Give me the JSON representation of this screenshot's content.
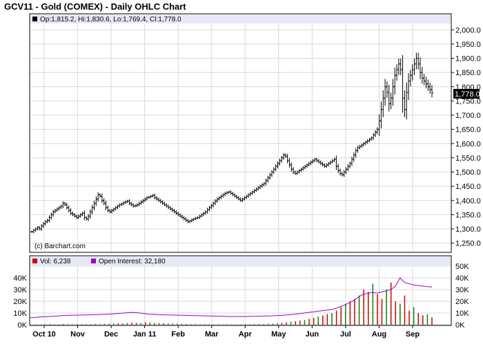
{
  "title": "GCV11 - Gold (COMEX) - Daily OHLC Chart",
  "price_legend": "Op:1,815.2, Hi:1,830.6, Lo:1,769.4, Cl:1,778.0",
  "copyright": "(c) Barchart.com",
  "last_price_label": "1,778.0",
  "volume_legend": "Vol: 6,238",
  "oi_legend": "Open Interest: 32,180",
  "colors": {
    "volume": "#cc0000",
    "open_interest": "#9900cc",
    "price_bars": "#000000",
    "legend_bg": "#e6e8f8"
  },
  "chart_data": [
    {
      "type": "ohlc",
      "series": [
        {
          "name": "GCV11"
        }
      ],
      "y_ticks": [
        "1,250.0",
        "1,300.0",
        "1,350.0",
        "1,400.0",
        "1,450.0",
        "1,500.0",
        "1,550.0",
        "1,600.0",
        "1,650.0",
        "1,700.0",
        "1,750.0",
        "1,800.0",
        "1,850.0",
        "1,900.0",
        "1,950.0",
        "2,000.0"
      ],
      "ylim": [
        1220,
        2020
      ],
      "x_ticks": [
        "Oct 10",
        "Nov",
        "Dec",
        "Jan 11",
        "Feb",
        "Mar",
        "Apr",
        "May",
        "Jun",
        "Jul",
        "Aug",
        "Sep"
      ],
      "last": {
        "open": 1815.2,
        "high": 1830.6,
        "low": 1769.4,
        "close": 1778.0
      },
      "grid": true,
      "closes": [
        1290,
        1295,
        1300,
        1305,
        1300,
        1310,
        1318,
        1325,
        1330,
        1340,
        1350,
        1360,
        1365,
        1370,
        1375,
        1380,
        1390,
        1385,
        1375,
        1365,
        1355,
        1350,
        1345,
        1340,
        1345,
        1350,
        1355,
        1340,
        1335,
        1345,
        1360,
        1375,
        1390,
        1405,
        1420,
        1415,
        1400,
        1390,
        1375,
        1365,
        1360,
        1365,
        1370,
        1375,
        1380,
        1385,
        1388,
        1392,
        1395,
        1398,
        1390,
        1385,
        1380,
        1382,
        1385,
        1390,
        1395,
        1400,
        1405,
        1410,
        1412,
        1415,
        1418,
        1410,
        1405,
        1400,
        1395,
        1390,
        1385,
        1380,
        1375,
        1370,
        1365,
        1360,
        1355,
        1350,
        1345,
        1340,
        1335,
        1330,
        1325,
        1328,
        1332,
        1335,
        1338,
        1340,
        1345,
        1350,
        1355,
        1360,
        1368,
        1375,
        1382,
        1390,
        1398,
        1405,
        1410,
        1415,
        1420,
        1425,
        1428,
        1430,
        1425,
        1420,
        1415,
        1410,
        1405,
        1400,
        1405,
        1410,
        1415,
        1420,
        1425,
        1430,
        1435,
        1440,
        1445,
        1450,
        1455,
        1460,
        1470,
        1480,
        1490,
        1500,
        1510,
        1520,
        1530,
        1540,
        1550,
        1560,
        1555,
        1540,
        1525,
        1510,
        1500,
        1495,
        1500,
        1505,
        1510,
        1515,
        1520,
        1525,
        1530,
        1535,
        1540,
        1545,
        1540,
        1535,
        1530,
        1525,
        1520,
        1525,
        1530,
        1535,
        1540,
        1545,
        1520,
        1505,
        1495,
        1490,
        1500,
        1510,
        1520,
        1530,
        1545,
        1560,
        1575,
        1585,
        1590,
        1595,
        1600,
        1605,
        1610,
        1615,
        1620,
        1630,
        1640,
        1650,
        1680,
        1720,
        1760,
        1800,
        1780,
        1740,
        1760,
        1800,
        1840,
        1860,
        1880,
        1860,
        1760,
        1720,
        1780,
        1820,
        1840,
        1860,
        1880,
        1900,
        1880,
        1850,
        1830,
        1820,
        1810,
        1800,
        1790,
        1778
      ],
      "volume_ylim": [
        0,
        50000
      ],
      "volume_ticks": [
        "0K",
        "10K",
        "20K",
        "30K",
        "40K",
        "50K"
      ],
      "volume_left_ticks": [
        "0K",
        "10K",
        "20K",
        "30K",
        "40K"
      ],
      "volume_last": 6238,
      "open_interest_last": 32180,
      "open_interest": [
        6000,
        6200,
        6500,
        6800,
        7000,
        7200,
        7500,
        7800,
        8000,
        8200,
        8200,
        8300,
        8400,
        8500,
        8600,
        8700,
        8800,
        9000,
        9200,
        9500,
        9800,
        10200,
        10500,
        10400,
        10000,
        9500,
        9000,
        8800,
        8600,
        8500,
        8400,
        8300,
        8200,
        8100,
        8000,
        7900,
        7800,
        7700,
        7600,
        7500,
        7400,
        7300,
        7200,
        7100,
        7000,
        7000,
        7000,
        7000,
        7100,
        7200,
        7300,
        7400,
        7500,
        7600,
        7800,
        8000,
        8300,
        8600,
        9000,
        9500,
        10000,
        10500,
        11000,
        11500,
        12000,
        12500,
        13000,
        14000,
        15500,
        17000,
        19000,
        21000,
        24000,
        26000,
        27000,
        27500,
        27000,
        28000,
        29000,
        30000,
        33000,
        40000,
        36000,
        35000,
        34000,
        33500,
        33000,
        32500,
        32180
      ],
      "volumes": [
        200,
        300,
        250,
        400,
        500,
        300,
        350,
        600,
        400,
        300,
        350,
        500,
        450,
        400,
        600,
        500,
        700,
        800,
        900,
        1200,
        1000,
        1500,
        1800,
        1600,
        1400,
        2000,
        1800,
        1500,
        1300,
        1200,
        1000,
        900,
        800,
        700,
        600,
        500,
        450,
        400,
        380,
        350,
        340,
        330,
        320,
        300,
        310,
        320,
        330,
        350,
        400,
        450,
        500,
        600,
        700,
        900,
        1200,
        1500,
        2000,
        2500,
        3000,
        3500,
        4000,
        5000,
        6000,
        7000,
        8000,
        9000,
        10000,
        12000,
        15000,
        18000,
        20000,
        22000,
        25000,
        30000,
        28000,
        35000,
        26000,
        22000,
        30000,
        36000,
        20000,
        18000,
        25000,
        12000,
        15000,
        10000,
        8000,
        9000,
        6238
      ]
    }
  ]
}
